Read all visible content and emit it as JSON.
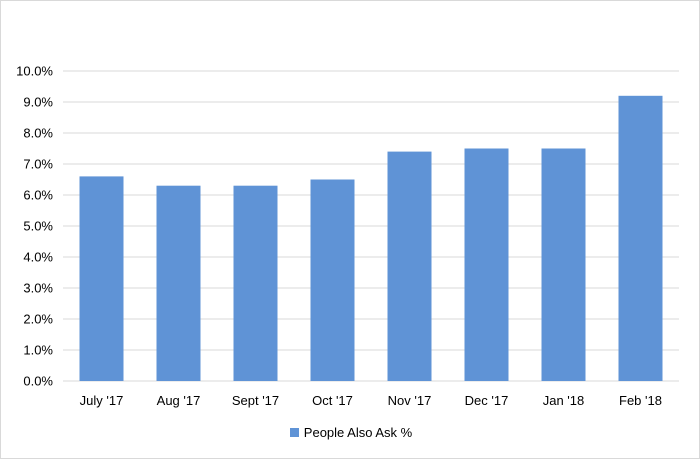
{
  "chart_data": {
    "type": "bar",
    "categories": [
      "July '17",
      "Aug '17",
      "Sept '17",
      "Oct '17",
      "Nov '17",
      "Dec '17",
      "Jan '18",
      "Feb '18"
    ],
    "series": [
      {
        "name": "People Also Ask %",
        "values": [
          6.6,
          6.3,
          6.3,
          6.5,
          7.4,
          7.5,
          7.5,
          9.2
        ],
        "color": "#5f93d6"
      }
    ],
    "ylim": [
      0,
      10
    ],
    "yticks": [
      "0.0%",
      "1.0%",
      "2.0%",
      "3.0%",
      "4.0%",
      "5.0%",
      "6.0%",
      "7.0%",
      "8.0%",
      "9.0%",
      "10.0%"
    ],
    "grid": true,
    "gridColor": "#d9d9d9",
    "legend": "bottom"
  }
}
